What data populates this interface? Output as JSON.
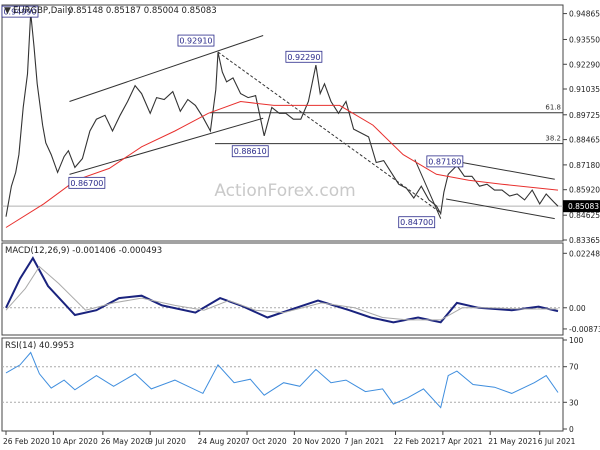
{
  "chart_data": [
    {
      "type": "line",
      "panel": "price",
      "symbol_label": "EURGBP,Daily",
      "ohlc_label": "0.85148 0.85187 0.85004 0.85083",
      "watermark": "ActionForex.com",
      "ylim": [
        0.83365,
        0.9525
      ],
      "y_ticks": [
        "0.94865",
        "0.93550",
        "0.92290",
        "0.91035",
        "0.89725",
        "0.88465",
        "0.87180",
        "0.85920",
        "0.84625",
        "0.83365"
      ],
      "current_price": "0.85083",
      "x_ticks": [
        "26 Feb 2020",
        "10 Apr 2020",
        "26 May 2020",
        "9 Jul 2020",
        "24 Aug 2020",
        "7 Oct 2020",
        "20 Nov 2020",
        "7 Jan 2021",
        "22 Feb 2021",
        "7 Apr 2021",
        "21 May 2021",
        "6 Jul 2021"
      ],
      "fib_levels": [
        {
          "label": "61.8",
          "value": 0.8983
        },
        {
          "label": "38.2",
          "value": 0.8826
        }
      ],
      "annotations": [
        {
          "label": "0.94990",
          "date": "2020-03-20",
          "value": 0.9499
        },
        {
          "label": "0.86700",
          "date": "2020-04-30",
          "value": 0.867
        },
        {
          "label": "0.92910",
          "date": "2020-09-10",
          "value": 0.9291
        },
        {
          "label": "0.88610",
          "date": "2020-10-23",
          "value": 0.8861
        },
        {
          "label": "0.92290",
          "date": "2020-12-10",
          "value": 0.9229
        },
        {
          "label": "0.84700",
          "date": "2021-04-05",
          "value": 0.847
        },
        {
          "label": "0.87180",
          "date": "2021-04-20",
          "value": 0.8718
        }
      ],
      "series": [
        {
          "name": "EURGBP",
          "color": "#333333",
          "points": [
            [
              "2020-02-26",
              0.8455
            ],
            [
              "2020-03-02",
              0.861
            ],
            [
              "2020-03-06",
              0.868
            ],
            [
              "2020-03-09",
              0.877
            ],
            [
              "2020-03-13",
              0.901
            ],
            [
              "2020-03-17",
              0.918
            ],
            [
              "2020-03-20",
              0.949
            ],
            [
              "2020-03-23",
              0.932
            ],
            [
              "2020-03-26",
              0.913
            ],
            [
              "2020-03-31",
              0.892
            ],
            [
              "2020-04-03",
              0.883
            ],
            [
              "2020-04-08",
              0.877
            ],
            [
              "2020-04-14",
              0.868
            ],
            [
              "2020-04-20",
              0.876
            ],
            [
              "2020-04-24",
              0.879
            ],
            [
              "2020-04-30",
              0.8705
            ],
            [
              "2020-05-07",
              0.875
            ],
            [
              "2020-05-14",
              0.889
            ],
            [
              "2020-05-20",
              0.895
            ],
            [
              "2020-05-28",
              0.897
            ],
            [
              "2020-06-04",
              0.889
            ],
            [
              "2020-06-11",
              0.897
            ],
            [
              "2020-06-18",
              0.904
            ],
            [
              "2020-06-25",
              0.912
            ],
            [
              "2020-07-01",
              0.908
            ],
            [
              "2020-07-09",
              0.898
            ],
            [
              "2020-07-15",
              0.906
            ],
            [
              "2020-07-22",
              0.905
            ],
            [
              "2020-07-30",
              0.909
            ],
            [
              "2020-08-06",
              0.899
            ],
            [
              "2020-08-13",
              0.905
            ],
            [
              "2020-08-20",
              0.902
            ],
            [
              "2020-08-27",
              0.896
            ],
            [
              "2020-09-03",
              0.889
            ],
            [
              "2020-09-08",
              0.91
            ],
            [
              "2020-09-10",
              0.929
            ],
            [
              "2020-09-14",
              0.919
            ],
            [
              "2020-09-18",
              0.914
            ],
            [
              "2020-09-24",
              0.916
            ],
            [
              "2020-10-01",
              0.908
            ],
            [
              "2020-10-08",
              0.906
            ],
            [
              "2020-10-15",
              0.907
            ],
            [
              "2020-10-23",
              0.8865
            ],
            [
              "2020-10-30",
              0.901
            ],
            [
              "2020-11-06",
              0.898
            ],
            [
              "2020-11-12",
              0.898
            ],
            [
              "2020-11-19",
              0.895
            ],
            [
              "2020-11-26",
              0.895
            ],
            [
              "2020-12-03",
              0.904
            ],
            [
              "2020-12-10",
              0.9225
            ],
            [
              "2020-12-14",
              0.908
            ],
            [
              "2020-12-18",
              0.913
            ],
            [
              "2020-12-24",
              0.904
            ],
            [
              "2020-12-31",
              0.898
            ],
            [
              "2021-01-07",
              0.904
            ],
            [
              "2021-01-14",
              0.89
            ],
            [
              "2021-01-21",
              0.888
            ],
            [
              "2021-01-28",
              0.886
            ],
            [
              "2021-02-04",
              0.873
            ],
            [
              "2021-02-11",
              0.874
            ],
            [
              "2021-02-18",
              0.868
            ],
            [
              "2021-02-25",
              0.862
            ],
            [
              "2021-03-04",
              0.86
            ],
            [
              "2021-03-11",
              0.855
            ],
            [
              "2021-03-18",
              0.861
            ],
            [
              "2021-03-25",
              0.854
            ],
            [
              "2021-04-01",
              0.851
            ],
            [
              "2021-04-05",
              0.847
            ],
            [
              "2021-04-08",
              0.858
            ],
            [
              "2021-04-12",
              0.867
            ],
            [
              "2021-04-20",
              0.8715
            ],
            [
              "2021-04-27",
              0.866
            ],
            [
              "2021-05-04",
              0.866
            ],
            [
              "2021-05-11",
              0.861
            ],
            [
              "2021-05-18",
              0.862
            ],
            [
              "2021-05-25",
              0.859
            ],
            [
              "2021-06-01",
              0.859
            ],
            [
              "2021-06-08",
              0.856
            ],
            [
              "2021-06-15",
              0.857
            ],
            [
              "2021-06-22",
              0.854
            ],
            [
              "2021-06-29",
              0.859
            ],
            [
              "2021-07-06",
              0.852
            ],
            [
              "2021-07-12",
              0.857
            ],
            [
              "2021-07-19",
              0.853
            ],
            [
              "2021-07-23",
              0.8508
            ]
          ]
        },
        {
          "name": "MA",
          "color": "#e8302e",
          "points": [
            [
              "2020-02-26",
              0.84
            ],
            [
              "2020-04-01",
              0.852
            ],
            [
              "2020-05-01",
              0.864
            ],
            [
              "2020-06-01",
              0.87
            ],
            [
              "2020-07-01",
              0.881
            ],
            [
              "2020-08-01",
              0.889
            ],
            [
              "2020-09-01",
              0.898
            ],
            [
              "2020-10-01",
              0.904
            ],
            [
              "2020-11-01",
              0.902
            ],
            [
              "2020-12-01",
              0.902
            ],
            [
              "2021-01-01",
              0.902
            ],
            [
              "2021-02-01",
              0.892
            ],
            [
              "2021-03-01",
              0.877
            ],
            [
              "2021-04-01",
              0.867
            ],
            [
              "2021-05-01",
              0.864
            ],
            [
              "2021-06-01",
              0.862
            ],
            [
              "2021-07-23",
              0.859
            ]
          ]
        }
      ]
    },
    {
      "type": "line",
      "panel": "macd",
      "label": "MACD(12,26,9) -0.001406 -0.000493",
      "ylim": [
        -0.01,
        0.0255
      ],
      "y_ticks": [
        "0.022482",
        "0.00",
        "-0.008736"
      ],
      "series": [
        {
          "name": "MACD",
          "color": "#1a237e",
          "points": [
            [
              "2020-02-26",
              0.0
            ],
            [
              "2020-03-10",
              0.012
            ],
            [
              "2020-03-22",
              0.0205
            ],
            [
              "2020-04-05",
              0.009
            ],
            [
              "2020-04-30",
              -0.003
            ],
            [
              "2020-05-20",
              -0.001
            ],
            [
              "2020-06-10",
              0.004
            ],
            [
              "2020-07-01",
              0.005
            ],
            [
              "2020-07-20",
              0.001
            ],
            [
              "2020-08-20",
              -0.002
            ],
            [
              "2020-09-12",
              0.004
            ],
            [
              "2020-10-01",
              0.001
            ],
            [
              "2020-10-26",
              -0.004
            ],
            [
              "2020-11-15",
              -0.001
            ],
            [
              "2020-12-12",
              0.003
            ],
            [
              "2021-01-10",
              -0.001
            ],
            [
              "2021-01-30",
              -0.004
            ],
            [
              "2021-02-20",
              -0.006
            ],
            [
              "2021-03-15",
              -0.004
            ],
            [
              "2021-04-05",
              -0.006
            ],
            [
              "2021-04-20",
              0.002
            ],
            [
              "2021-05-10",
              0.0
            ],
            [
              "2021-06-10",
              -0.001
            ],
            [
              "2021-07-05",
              0.0005
            ],
            [
              "2021-07-23",
              -0.0014
            ]
          ]
        },
        {
          "name": "Signal",
          "color": "#aaaaaa",
          "points": [
            [
              "2020-02-26",
              -0.001
            ],
            [
              "2020-03-15",
              0.008
            ],
            [
              "2020-03-28",
              0.017
            ],
            [
              "2020-04-15",
              0.01
            ],
            [
              "2020-05-10",
              -0.001
            ],
            [
              "2020-06-05",
              0.002
            ],
            [
              "2020-07-01",
              0.004
            ],
            [
              "2020-08-01",
              0.001
            ],
            [
              "2020-08-28",
              -0.001
            ],
            [
              "2020-09-20",
              0.003
            ],
            [
              "2020-10-15",
              -0.001
            ],
            [
              "2020-11-10",
              -0.002
            ],
            [
              "2020-12-15",
              0.002
            ],
            [
              "2021-01-15",
              0.0
            ],
            [
              "2021-02-10",
              -0.004
            ],
            [
              "2021-03-05",
              -0.005
            ],
            [
              "2021-04-05",
              -0.005
            ],
            [
              "2021-04-25",
              0.0
            ],
            [
              "2021-05-20",
              0.0
            ],
            [
              "2021-06-20",
              -0.0005
            ],
            [
              "2021-07-23",
              -0.0005
            ]
          ]
        }
      ]
    },
    {
      "type": "line",
      "panel": "rsi",
      "label": "RSI(14) 40.9953",
      "ylim": [
        0,
        100
      ],
      "y_ticks": [
        "100",
        "70",
        "30",
        "0"
      ],
      "series": [
        {
          "name": "RSI",
          "color": "#3f8ede",
          "points": [
            [
              "2020-02-26",
              63
            ],
            [
              "2020-03-10",
              72
            ],
            [
              "2020-03-20",
              86
            ],
            [
              "2020-03-28",
              62
            ],
            [
              "2020-04-08",
              46
            ],
            [
              "2020-04-20",
              55
            ],
            [
              "2020-04-30",
              44
            ],
            [
              "2020-05-20",
              60
            ],
            [
              "2020-06-05",
              48
            ],
            [
              "2020-06-25",
              62
            ],
            [
              "2020-07-10",
              45
            ],
            [
              "2020-08-01",
              55
            ],
            [
              "2020-08-27",
              40
            ],
            [
              "2020-09-10",
              72
            ],
            [
              "2020-09-25",
              52
            ],
            [
              "2020-10-10",
              56
            ],
            [
              "2020-10-23",
              38
            ],
            [
              "2020-11-10",
              52
            ],
            [
              "2020-11-25",
              48
            ],
            [
              "2020-12-10",
              67
            ],
            [
              "2020-12-24",
              52
            ],
            [
              "2021-01-07",
              55
            ],
            [
              "2021-01-25",
              42
            ],
            [
              "2021-02-10",
              45
            ],
            [
              "2021-02-20",
              28
            ],
            [
              "2021-03-05",
              35
            ],
            [
              "2021-03-20",
              45
            ],
            [
              "2021-04-05",
              24
            ],
            [
              "2021-04-12",
              60
            ],
            [
              "2021-04-20",
              65
            ],
            [
              "2021-05-05",
              50
            ],
            [
              "2021-05-25",
              47
            ],
            [
              "2021-06-10",
              40
            ],
            [
              "2021-07-01",
              52
            ],
            [
              "2021-07-12",
              60
            ],
            [
              "2021-07-23",
              41
            ]
          ]
        }
      ]
    }
  ]
}
